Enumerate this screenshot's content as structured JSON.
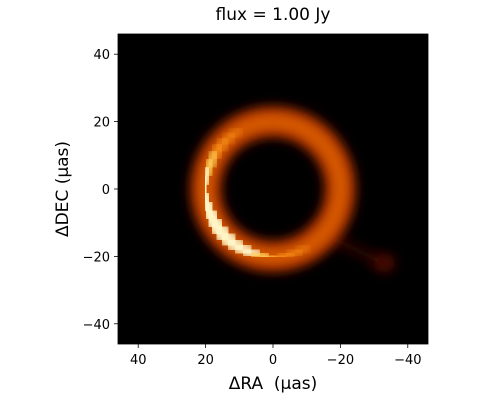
{
  "chart_data": {
    "type": "heatmap",
    "title": "flux = 1.00 Jy",
    "xlabel": "ΔRA  (μas)",
    "ylabel": "ΔDEC (μas)",
    "xlim": [
      46,
      -46
    ],
    "ylim": [
      -46,
      46
    ],
    "x_ticks": [
      40,
      20,
      0,
      -20,
      -40
    ],
    "y_ticks": [
      40,
      20,
      0,
      -20,
      -40
    ],
    "x_tick_labels": [
      "40",
      "20",
      "0",
      "−20",
      "−40"
    ],
    "y_tick_labels": [
      "40",
      "20",
      "0",
      "−20",
      "−40"
    ],
    "colormap": "afmhot",
    "background_color": "#000000",
    "features": [
      {
        "kind": "ring",
        "center": [
          0,
          0
        ],
        "radius": 20,
        "peak_angle_deg": 210,
        "relative_brightness": 1.0
      },
      {
        "kind": "blob",
        "center": [
          -33,
          -22
        ],
        "relative_brightness": 0.35
      }
    ]
  }
}
